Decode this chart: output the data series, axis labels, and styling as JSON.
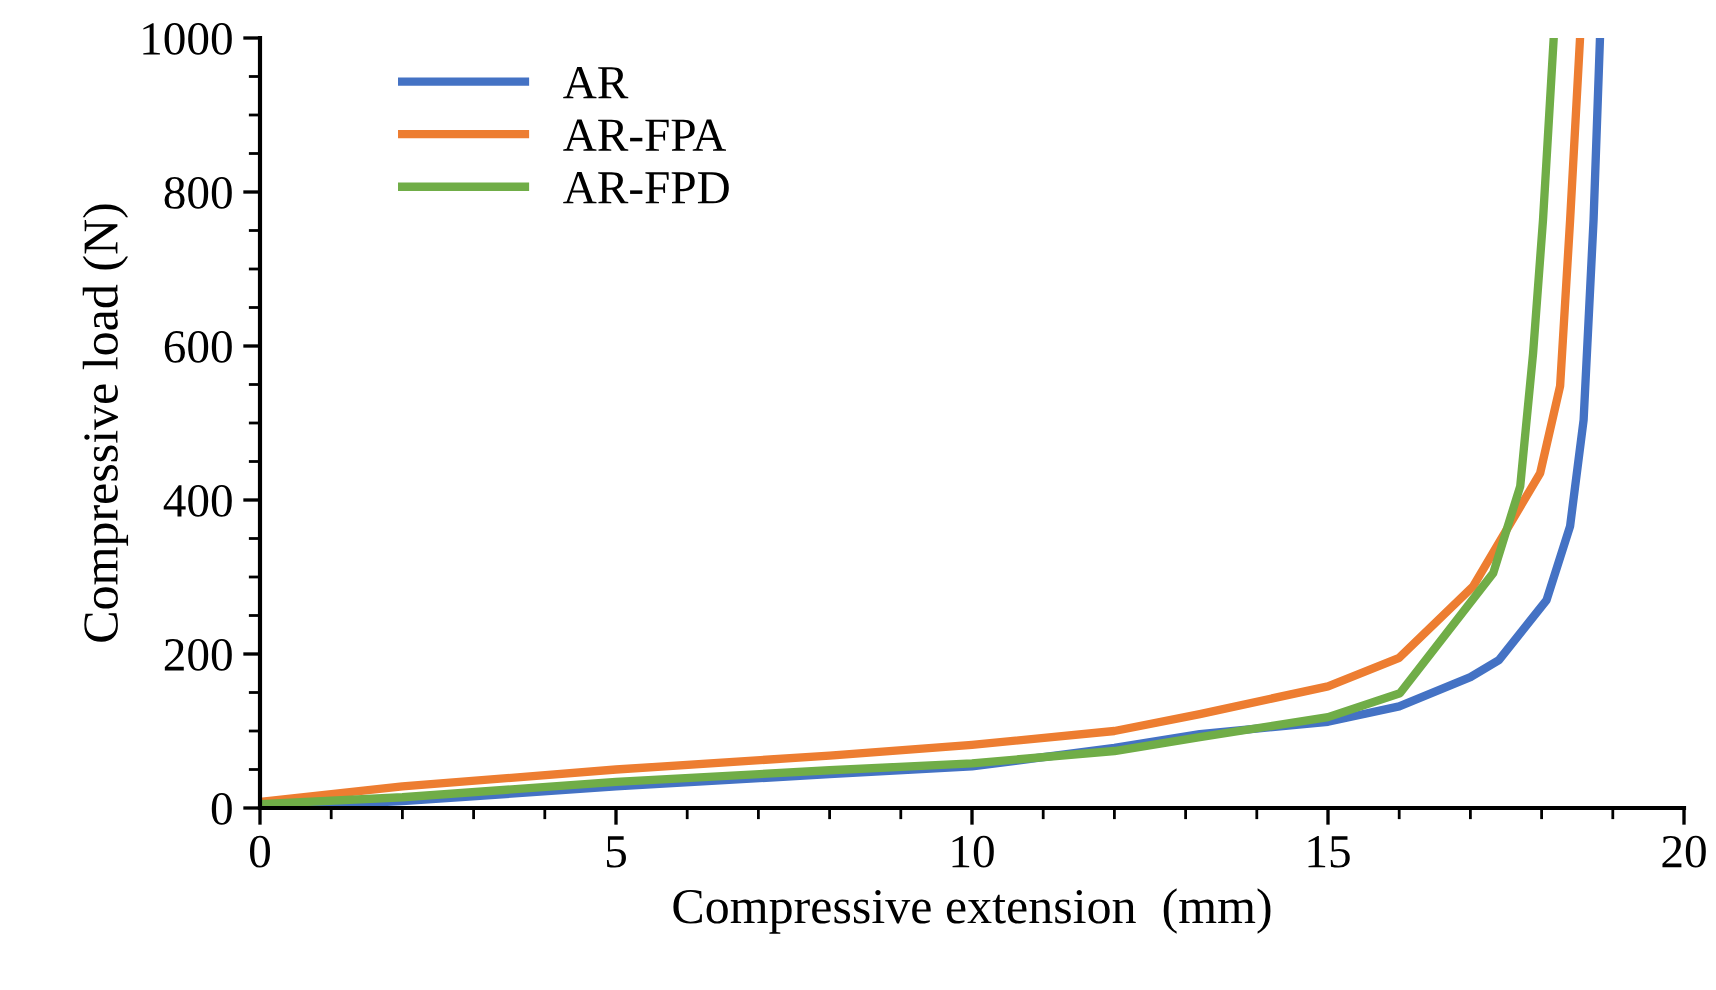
{
  "chart_data": {
    "type": "line",
    "xlabel": "Compressive extension  (mm)",
    "ylabel": "Compressive load (N)",
    "xlim": [
      0,
      20
    ],
    "ylim": [
      0,
      1000
    ],
    "xticks": [
      0,
      5,
      10,
      15,
      20
    ],
    "yticks": [
      0,
      200,
      400,
      600,
      800,
      1000
    ],
    "grid": false,
    "legend": "top left",
    "marker": "none",
    "line_style": "solid",
    "series": [
      {
        "name": "AR",
        "color": "#4472c4",
        "x": [
          0,
          2,
          5,
          8,
          10,
          12,
          13.2,
          15,
          16,
          17,
          17.4,
          18.07,
          18.4,
          18.59,
          18.73,
          18.82
        ],
        "values": [
          0,
          9,
          28,
          44,
          54,
          78,
          96,
          112,
          132,
          170,
          192,
          270,
          366,
          504,
          764,
          1000
        ]
      },
      {
        "name": "AR-FPA",
        "color": "#ed7d31",
        "x": [
          0,
          2,
          5,
          8,
          10,
          12,
          13.2,
          15,
          16,
          17.04,
          17.98,
          18.26,
          18.4,
          18.54
        ],
        "values": [
          8,
          28,
          50,
          68,
          82,
          100,
          122,
          158,
          195,
          288,
          435,
          548,
          763,
          1000
        ]
      },
      {
        "name": "AR-FPD",
        "color": "#70ad47",
        "x": [
          0,
          2,
          5,
          8,
          10,
          12,
          13.2,
          15,
          16.01,
          17.32,
          17.7,
          17.88,
          18.02,
          18.17
        ],
        "values": [
          5,
          14,
          34,
          49,
          58,
          74,
          92,
          118,
          149,
          305,
          418,
          590,
          764,
          1000
        ]
      }
    ]
  }
}
